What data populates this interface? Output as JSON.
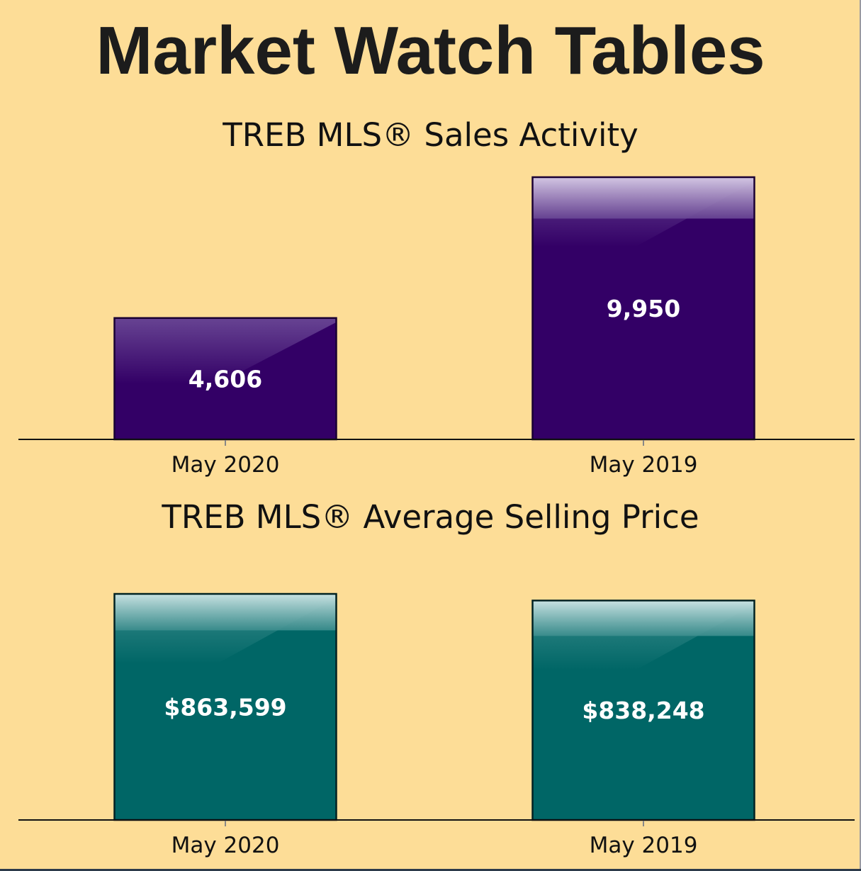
{
  "header": {
    "title": "Market Watch Tables"
  },
  "chart_data": [
    {
      "type": "bar",
      "title": "TREB MLS® Sales Activity",
      "categories": [
        "May 2020",
        "May 2019"
      ],
      "values": [
        4606,
        9950
      ],
      "value_labels": [
        "4,606",
        "9,950"
      ],
      "ylim": [
        0,
        9950
      ],
      "grid": false,
      "legend": "none",
      "colors": {
        "bar": "#330066",
        "highlight": "#6a4795",
        "cap": "#d3c6e3",
        "border": "#1a0033"
      }
    },
    {
      "type": "bar",
      "title": "TREB MLS® Average Selling Price",
      "categories": [
        "May 2020",
        "May 2019"
      ],
      "values": [
        863599,
        838248
      ],
      "value_labels": [
        "$863,599",
        "$838,248"
      ],
      "ylim": [
        0,
        863599
      ],
      "grid": false,
      "legend": "none",
      "colors": {
        "bar": "#006666",
        "highlight": "#3d8e8e",
        "cap": "#c8e2e2",
        "border": "#002222"
      }
    }
  ]
}
